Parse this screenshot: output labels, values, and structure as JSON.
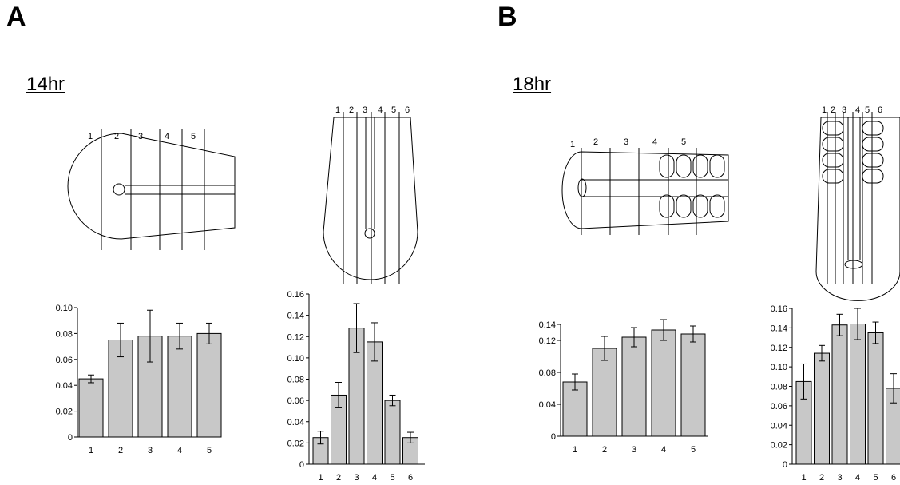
{
  "panels": [
    {
      "letter": "A",
      "time": "14hr"
    },
    {
      "letter": "B",
      "time": "18hr"
    }
  ],
  "schematics": [
    {
      "section_labels": [
        "1",
        "2",
        "3",
        "4",
        "5"
      ]
    },
    {
      "section_labels": [
        "1",
        "2",
        "3",
        "4",
        "5",
        "6"
      ]
    },
    {
      "section_labels": [
        "1",
        "2",
        "3",
        "4",
        "5"
      ]
    },
    {
      "section_labels": [
        "1",
        "2",
        "3",
        "4",
        "5",
        "6"
      ]
    }
  ],
  "chart_data": [
    {
      "type": "bar",
      "panel": "A",
      "time": "14hr",
      "categories": [
        "1",
        "2",
        "3",
        "4",
        "5"
      ],
      "values": [
        0.045,
        0.075,
        0.078,
        0.078,
        0.08
      ],
      "errors": [
        0.003,
        0.013,
        0.02,
        0.01,
        0.008
      ],
      "ylim": [
        0,
        0.1
      ],
      "yticks": [
        "0",
        "0.02",
        "0.04",
        "0.06",
        "0.08",
        "0.10"
      ],
      "xlabel": "",
      "ylabel": "",
      "title": "",
      "bar_color": "#c8c8c8"
    },
    {
      "type": "bar",
      "panel": "A",
      "time": "14hr",
      "categories": [
        "1",
        "2",
        "3",
        "4",
        "5",
        "6"
      ],
      "values": [
        0.025,
        0.065,
        0.128,
        0.115,
        0.06,
        0.025
      ],
      "errors": [
        0.006,
        0.012,
        0.023,
        0.018,
        0.005,
        0.005
      ],
      "ylim": [
        0,
        0.16
      ],
      "yticks": [
        "0",
        "0.02",
        "0.04",
        "0.06",
        "0.08",
        "0.10",
        "0.12",
        "0.14",
        "0.16"
      ],
      "xlabel": "",
      "ylabel": "",
      "title": "",
      "bar_color": "#c8c8c8"
    },
    {
      "type": "bar",
      "panel": "B",
      "time": "18hr",
      "categories": [
        "1",
        "2",
        "3",
        "4",
        "5"
      ],
      "values": [
        0.068,
        0.11,
        0.124,
        0.133,
        0.128
      ],
      "errors": [
        0.01,
        0.015,
        0.012,
        0.013,
        0.01
      ],
      "ylim": [
        0,
        0.14
      ],
      "yticks": [
        "0",
        "0.04",
        "0.08",
        "0.12",
        "0.14"
      ],
      "ytick_values": [
        0,
        0.04,
        0.08,
        0.12,
        0.14
      ],
      "xlabel": "",
      "ylabel": "",
      "title": "",
      "bar_color": "#c8c8c8"
    },
    {
      "type": "bar",
      "panel": "B",
      "time": "18hr",
      "categories": [
        "1",
        "2",
        "3",
        "4",
        "5",
        "6"
      ],
      "values": [
        0.085,
        0.114,
        0.143,
        0.144,
        0.135,
        0.078
      ],
      "errors": [
        0.018,
        0.008,
        0.011,
        0.016,
        0.011,
        0.015
      ],
      "ylim": [
        0,
        0.16
      ],
      "yticks": [
        "0",
        "0.02",
        "0.04",
        "0.06",
        "0.08",
        "0.10",
        "0.12",
        "0.14",
        "0.16"
      ],
      "xlabel": "",
      "ylabel": "",
      "title": "",
      "bar_color": "#c8c8c8"
    }
  ]
}
